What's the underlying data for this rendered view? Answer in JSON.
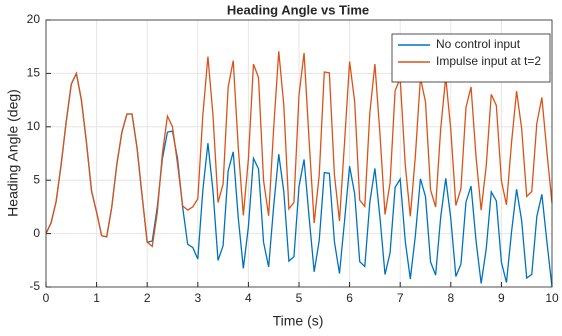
{
  "chart_data": {
    "type": "line",
    "title": "Heading Angle vs Time",
    "x_label": "Time (s)",
    "y_label": "Heading Angle (deg)",
    "x": [
      0,
      0.1,
      0.2,
      0.3,
      0.4,
      0.5,
      0.6,
      0.7,
      0.8,
      0.9,
      1,
      1.1,
      1.2,
      1.3,
      1.4,
      1.5,
      1.6,
      1.7,
      1.8,
      1.9,
      2,
      2.1,
      2.2,
      2.3,
      2.4,
      2.5,
      2.6,
      2.7,
      2.8,
      2.9,
      3,
      3.1,
      3.2,
      3.3,
      3.4,
      3.5,
      3.6,
      3.7,
      3.8,
      3.9,
      4,
      4.1,
      4.2,
      4.3,
      4.4,
      4.5,
      4.6,
      4.7,
      4.8,
      4.9,
      5,
      5.1,
      5.2,
      5.3,
      5.4,
      5.5,
      5.6,
      5.7,
      5.8,
      5.9,
      6,
      6.1,
      6.2,
      6.3,
      6.4,
      6.5,
      6.6,
      6.7,
      6.8,
      6.9,
      7,
      7.1,
      7.2,
      7.3,
      7.4,
      7.5,
      7.6,
      7.7,
      7.8,
      7.9,
      8,
      8.1,
      8.2,
      8.3,
      8.4,
      8.5,
      8.6,
      8.7,
      8.8,
      8.9,
      9,
      9.1,
      9.2,
      9.3,
      9.4,
      9.5,
      9.6,
      9.7,
      9.8,
      9.9,
      10
    ],
    "series": [
      {
        "name": "No control input",
        "color": "#0072BD",
        "values": [
          0,
          1,
          3,
          6.5,
          10.5,
          14,
          15,
          12.5,
          8.5,
          4,
          2,
          -0.2,
          -0.3,
          2.5,
          6.5,
          9.5,
          11.2,
          11.2,
          8,
          3.5,
          -0.8,
          -0.7,
          2.5,
          7,
          9.5,
          9.6,
          7,
          2.5,
          -1,
          -1.3,
          -2.38,
          4.09,
          8.46,
          3.98,
          -2.51,
          -1.13,
          5.87,
          7.66,
          1.46,
          -3.26,
          0.64,
          7.05,
          6.06,
          -0.83,
          -3.12,
          2.59,
          7.43,
          3.92,
          -2.58,
          -2.17,
          4.4,
          6.94,
          1.52,
          -3.58,
          -0.63,
          5.71,
          5.64,
          -0.76,
          -3.74,
          1.19,
          6.31,
          3.74,
          -2.63,
          -3.08,
          2.95,
          6.1,
          1.51,
          -3.83,
          -1.8,
          4.33,
          5.11,
          -0.72,
          -4.25,
          -0.18,
          5.13,
          3.46,
          -2.66,
          -3.89,
          1.52,
          5.17,
          1.41,
          -4.02,
          -2.87,
          2.96,
          4.45,
          -0.73,
          -4.67,
          -1.43,
          3.9,
          3.06,
          -2.67,
          -4.58,
          0.15,
          4.15,
          1.23,
          -4.16,
          -3.82,
          1.6,
          3.68,
          -0.8,
          -5.01
        ]
      },
      {
        "name": "Impulse input at t=2",
        "color": "#D95319",
        "values": [
          0,
          1,
          3,
          6.5,
          10.5,
          14,
          15,
          12.5,
          8.5,
          4,
          2,
          -0.2,
          -0.3,
          2.5,
          6.5,
          9.5,
          11.2,
          11.2,
          8,
          3.5,
          -0.8,
          -1.2,
          2,
          7.5,
          11,
          10,
          6.5,
          2.6,
          2.2,
          2.5,
          3.25,
          11.11,
          16.58,
          11.09,
          2.92,
          4.64,
          13.73,
          16.19,
          8.04,
          1.7,
          6.99,
          15.87,
          14.6,
          4.95,
          1.67,
          9.91,
          17.07,
          12,
          2.32,
          2.91,
          13,
          16.92,
          8.68,
          0.99,
          5.52,
          15.13,
          15.05,
          5.52,
          1.18,
          8.54,
          16.11,
          12.36,
          3.13,
          2.55,
          11.32,
          15.87,
          9.32,
          1.79,
          4.74,
          13.41,
          14.51,
          6.43,
          1.62,
          7.28,
          14.58,
          12.32,
          4.09,
          2.5,
          9.8,
          14.66,
          9.72,
          2.64,
          4.2,
          11.81,
          13.73,
          7.12,
          2.19,
          6.34,
          13.04,
          12,
          4.95,
          2.69,
          8.5,
          13.34,
          9.85,
          3.48,
          3.94,
          10.33,
          12.75,
          7.61,
          2.85
        ]
      }
    ],
    "xlim": [
      0,
      10
    ],
    "xticks": [
      0,
      1,
      2,
      3,
      4,
      5,
      6,
      7,
      8,
      9,
      10
    ],
    "ylim": [
      -5,
      20
    ],
    "yticks": [
      -5,
      0,
      5,
      10,
      15,
      20
    ],
    "grid": true,
    "legend": "northeast"
  }
}
